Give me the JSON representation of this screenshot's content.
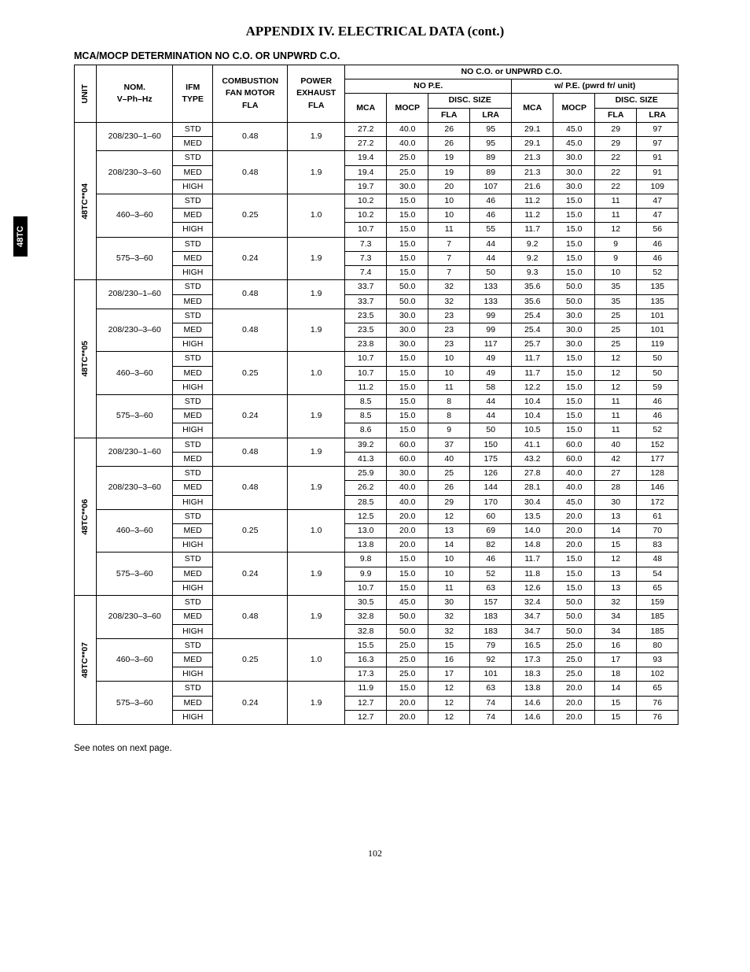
{
  "title": "APPENDIX IV. ELECTRICAL DATA (cont.)",
  "subtitle": "MCA/MOCP DETERMINATION NO C.O. OR UNPWRD C.O.",
  "side_tab": "48TC",
  "footer_note": "See notes on next page.",
  "page_number": "102",
  "header": {
    "unit": "UNIT",
    "nom": "NOM.",
    "vphhz": "V–Ph–Hz",
    "ifm": "IFM",
    "type": "TYPE",
    "comb": "COMBUSTION",
    "fanmotor": "FAN MOTOR",
    "fla1": "FLA",
    "power": "POWER",
    "exhaust": "EXHAUST",
    "fla2": "FLA",
    "group_top": "NO C.O. or UNPWRD C.O.",
    "nope": "NO P.E.",
    "wpe": "w/ P.E. (pwrd fr/ unit)",
    "mca": "MCA",
    "mocp": "MOCP",
    "disc": "DISC. SIZE",
    "fla": "FLA",
    "lra": "LRA"
  },
  "units": [
    {
      "id": "48TC**04",
      "groups": [
        {
          "voltage": "208/230–1–60",
          "comb": "0.48",
          "pex": "1.9",
          "rows": [
            {
              "ifm": "STD",
              "v": [
                "27.2",
                "40.0",
                "26",
                "95",
                "29.1",
                "45.0",
                "29",
                "97"
              ]
            },
            {
              "ifm": "MED",
              "v": [
                "27.2",
                "40.0",
                "26",
                "95",
                "29.1",
                "45.0",
                "29",
                "97"
              ]
            }
          ]
        },
        {
          "voltage": "208/230–3–60",
          "comb": "0.48",
          "pex": "1.9",
          "rows": [
            {
              "ifm": "STD",
              "v": [
                "19.4",
                "25.0",
                "19",
                "89",
                "21.3",
                "30.0",
                "22",
                "91"
              ]
            },
            {
              "ifm": "MED",
              "v": [
                "19.4",
                "25.0",
                "19",
                "89",
                "21.3",
                "30.0",
                "22",
                "91"
              ]
            },
            {
              "ifm": "HIGH",
              "v": [
                "19.7",
                "30.0",
                "20",
                "107",
                "21.6",
                "30.0",
                "22",
                "109"
              ]
            }
          ]
        },
        {
          "voltage": "460–3–60",
          "comb": "0.25",
          "pex": "1.0",
          "rows": [
            {
              "ifm": "STD",
              "v": [
                "10.2",
                "15.0",
                "10",
                "46",
                "11.2",
                "15.0",
                "11",
                "47"
              ]
            },
            {
              "ifm": "MED",
              "v": [
                "10.2",
                "15.0",
                "10",
                "46",
                "11.2",
                "15.0",
                "11",
                "47"
              ]
            },
            {
              "ifm": "HIGH",
              "v": [
                "10.7",
                "15.0",
                "11",
                "55",
                "11.7",
                "15.0",
                "12",
                "56"
              ]
            }
          ]
        },
        {
          "voltage": "575–3–60",
          "comb": "0.24",
          "pex": "1.9",
          "rows": [
            {
              "ifm": "STD",
              "v": [
                "7.3",
                "15.0",
                "7",
                "44",
                "9.2",
                "15.0",
                "9",
                "46"
              ]
            },
            {
              "ifm": "MED",
              "v": [
                "7.3",
                "15.0",
                "7",
                "44",
                "9.2",
                "15.0",
                "9",
                "46"
              ]
            },
            {
              "ifm": "HIGH",
              "v": [
                "7.4",
                "15.0",
                "7",
                "50",
                "9.3",
                "15.0",
                "10",
                "52"
              ]
            }
          ]
        }
      ]
    },
    {
      "id": "48TC**05",
      "groups": [
        {
          "voltage": "208/230–1–60",
          "comb": "0.48",
          "pex": "1.9",
          "rows": [
            {
              "ifm": "STD",
              "v": [
                "33.7",
                "50.0",
                "32",
                "133",
                "35.6",
                "50.0",
                "35",
                "135"
              ]
            },
            {
              "ifm": "MED",
              "v": [
                "33.7",
                "50.0",
                "32",
                "133",
                "35.6",
                "50.0",
                "35",
                "135"
              ]
            }
          ]
        },
        {
          "voltage": "208/230–3–60",
          "comb": "0.48",
          "pex": "1.9",
          "rows": [
            {
              "ifm": "STD",
              "v": [
                "23.5",
                "30.0",
                "23",
                "99",
                "25.4",
                "30.0",
                "25",
                "101"
              ]
            },
            {
              "ifm": "MED",
              "v": [
                "23.5",
                "30.0",
                "23",
                "99",
                "25.4",
                "30.0",
                "25",
                "101"
              ]
            },
            {
              "ifm": "HIGH",
              "v": [
                "23.8",
                "30.0",
                "23",
                "117",
                "25.7",
                "30.0",
                "25",
                "119"
              ]
            }
          ]
        },
        {
          "voltage": "460–3–60",
          "comb": "0.25",
          "pex": "1.0",
          "rows": [
            {
              "ifm": "STD",
              "v": [
                "10.7",
                "15.0",
                "10",
                "49",
                "11.7",
                "15.0",
                "12",
                "50"
              ]
            },
            {
              "ifm": "MED",
              "v": [
                "10.7",
                "15.0",
                "10",
                "49",
                "11.7",
                "15.0",
                "12",
                "50"
              ]
            },
            {
              "ifm": "HIGH",
              "v": [
                "11.2",
                "15.0",
                "11",
                "58",
                "12.2",
                "15.0",
                "12",
                "59"
              ]
            }
          ]
        },
        {
          "voltage": "575–3–60",
          "comb": "0.24",
          "pex": "1.9",
          "rows": [
            {
              "ifm": "STD",
              "v": [
                "8.5",
                "15.0",
                "8",
                "44",
                "10.4",
                "15.0",
                "11",
                "46"
              ]
            },
            {
              "ifm": "MED",
              "v": [
                "8.5",
                "15.0",
                "8",
                "44",
                "10.4",
                "15.0",
                "11",
                "46"
              ]
            },
            {
              "ifm": "HIGH",
              "v": [
                "8.6",
                "15.0",
                "9",
                "50",
                "10.5",
                "15.0",
                "11",
                "52"
              ]
            }
          ]
        }
      ]
    },
    {
      "id": "48TC**06",
      "groups": [
        {
          "voltage": "208/230–1–60",
          "comb": "0.48",
          "pex": "1.9",
          "rows": [
            {
              "ifm": "STD",
              "v": [
                "39.2",
                "60.0",
                "37",
                "150",
                "41.1",
                "60.0",
                "40",
                "152"
              ]
            },
            {
              "ifm": "MED",
              "v": [
                "41.3",
                "60.0",
                "40",
                "175",
                "43.2",
                "60.0",
                "42",
                "177"
              ]
            }
          ]
        },
        {
          "voltage": "208/230–3–60",
          "comb": "0.48",
          "pex": "1.9",
          "rows": [
            {
              "ifm": "STD",
              "v": [
                "25.9",
                "30.0",
                "25",
                "126",
                "27.8",
                "40.0",
                "27",
                "128"
              ]
            },
            {
              "ifm": "MED",
              "v": [
                "26.2",
                "40.0",
                "26",
                "144",
                "28.1",
                "40.0",
                "28",
                "146"
              ]
            },
            {
              "ifm": "HIGH",
              "v": [
                "28.5",
                "40.0",
                "29",
                "170",
                "30.4",
                "45.0",
                "30",
                "172"
              ]
            }
          ]
        },
        {
          "voltage": "460–3–60",
          "comb": "0.25",
          "pex": "1.0",
          "rows": [
            {
              "ifm": "STD",
              "v": [
                "12.5",
                "20.0",
                "12",
                "60",
                "13.5",
                "20.0",
                "13",
                "61"
              ]
            },
            {
              "ifm": "MED",
              "v": [
                "13.0",
                "20.0",
                "13",
                "69",
                "14.0",
                "20.0",
                "14",
                "70"
              ]
            },
            {
              "ifm": "HIGH",
              "v": [
                "13.8",
                "20.0",
                "14",
                "82",
                "14.8",
                "20.0",
                "15",
                "83"
              ]
            }
          ]
        },
        {
          "voltage": "575–3–60",
          "comb": "0.24",
          "pex": "1.9",
          "rows": [
            {
              "ifm": "STD",
              "v": [
                "9.8",
                "15.0",
                "10",
                "46",
                "11.7",
                "15.0",
                "12",
                "48"
              ]
            },
            {
              "ifm": "MED",
              "v": [
                "9.9",
                "15.0",
                "10",
                "52",
                "11.8",
                "15.0",
                "13",
                "54"
              ]
            },
            {
              "ifm": "HIGH",
              "v": [
                "10.7",
                "15.0",
                "11",
                "63",
                "12.6",
                "15.0",
                "13",
                "65"
              ]
            }
          ]
        }
      ]
    },
    {
      "id": "48TC**07",
      "groups": [
        {
          "voltage": "208/230–3–60",
          "comb": "0.48",
          "pex": "1.9",
          "rows": [
            {
              "ifm": "STD",
              "v": [
                "30.5",
                "45.0",
                "30",
                "157",
                "32.4",
                "50.0",
                "32",
                "159"
              ]
            },
            {
              "ifm": "MED",
              "v": [
                "32.8",
                "50.0",
                "32",
                "183",
                "34.7",
                "50.0",
                "34",
                "185"
              ]
            },
            {
              "ifm": "HIGH",
              "v": [
                "32.8",
                "50.0",
                "32",
                "183",
                "34.7",
                "50.0",
                "34",
                "185"
              ]
            }
          ]
        },
        {
          "voltage": "460–3–60",
          "comb": "0.25",
          "pex": "1.0",
          "rows": [
            {
              "ifm": "STD",
              "v": [
                "15.5",
                "25.0",
                "15",
                "79",
                "16.5",
                "25.0",
                "16",
                "80"
              ]
            },
            {
              "ifm": "MED",
              "v": [
                "16.3",
                "25.0",
                "16",
                "92",
                "17.3",
                "25.0",
                "17",
                "93"
              ]
            },
            {
              "ifm": "HIGH",
              "v": [
                "17.3",
                "25.0",
                "17",
                "101",
                "18.3",
                "25.0",
                "18",
                "102"
              ]
            }
          ]
        },
        {
          "voltage": "575–3–60",
          "comb": "0.24",
          "pex": "1.9",
          "rows": [
            {
              "ifm": "STD",
              "v": [
                "11.9",
                "15.0",
                "12",
                "63",
                "13.8",
                "20.0",
                "14",
                "65"
              ]
            },
            {
              "ifm": "MED",
              "v": [
                "12.7",
                "20.0",
                "12",
                "74",
                "14.6",
                "20.0",
                "15",
                "76"
              ]
            },
            {
              "ifm": "HIGH",
              "v": [
                "12.7",
                "20.0",
                "12",
                "74",
                "14.6",
                "20.0",
                "15",
                "76"
              ]
            }
          ]
        }
      ]
    }
  ]
}
